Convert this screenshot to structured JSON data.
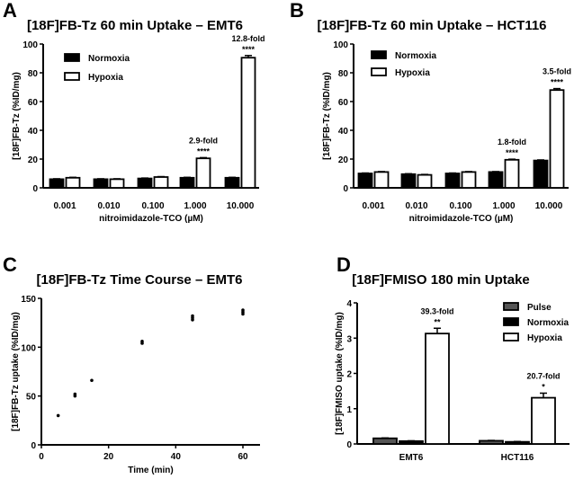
{
  "chart_data": [
    {
      "panel": "A",
      "type": "bar",
      "title": "[18F]FB-Tz 60 min Uptake – EMT6",
      "xlabel": "nitroimidazole-TCO (µM)",
      "ylabel": "[18F]FB-Tz (%ID/mg)",
      "ylim": [
        0,
        100
      ],
      "yticks": [
        0,
        20,
        40,
        60,
        80,
        100
      ],
      "categories": [
        "0.001",
        "0.010",
        "0.100",
        "1.000",
        "10.000"
      ],
      "legend_position": "top-left",
      "series": [
        {
          "name": "Normoxia",
          "color": "#000000",
          "values": [
            6,
            6,
            6.5,
            7,
            7
          ],
          "errors": [
            0.3,
            0.3,
            0.3,
            0.3,
            0.3
          ]
        },
        {
          "name": "Hypoxia",
          "color": "#ffffff",
          "values": [
            7,
            6,
            7.5,
            20.5,
            90.5
          ],
          "errors": [
            0.3,
            0.3,
            0.3,
            0.5,
            1.5
          ]
        }
      ],
      "annotations": [
        {
          "category": "1.000",
          "fold": "2.9-fold",
          "sig": "****"
        },
        {
          "category": "10.000",
          "fold": "12.8-fold",
          "sig": "****"
        }
      ]
    },
    {
      "panel": "B",
      "type": "bar",
      "title": "[18F]FB-Tz 60 min Uptake – HCT116",
      "xlabel": "nitroimidazole-TCO (µM)",
      "ylabel": "[18F]FB-Tz (%ID/mg)",
      "ylim": [
        0,
        100
      ],
      "yticks": [
        0,
        20,
        40,
        60,
        80,
        100
      ],
      "categories": [
        "0.001",
        "0.010",
        "0.100",
        "1.000",
        "10.000"
      ],
      "legend_position": "top-left",
      "series": [
        {
          "name": "Normoxia",
          "color": "#000000",
          "values": [
            10,
            9.5,
            10,
            11,
            19
          ],
          "errors": [
            0.3,
            0.3,
            0.3,
            0.3,
            0.4
          ]
        },
        {
          "name": "Hypoxia",
          "color": "#ffffff",
          "values": [
            11,
            9,
            11,
            19.5,
            68
          ],
          "errors": [
            0.3,
            0.3,
            0.3,
            0.4,
            1
          ]
        }
      ],
      "annotations": [
        {
          "category": "1.000",
          "fold": "1.8-fold",
          "sig": "****"
        },
        {
          "category": "10.000",
          "fold": "3.5-fold",
          "sig": "****"
        }
      ]
    },
    {
      "panel": "C",
      "type": "scatter",
      "title": "[18F]FB-Tz Time Course – EMT6",
      "xlabel": "Time (min)",
      "ylabel": "[18F]FB-Tz uptake (%ID/mg)",
      "xlim": [
        0,
        65
      ],
      "ylim": [
        0,
        150
      ],
      "xticks": [
        0,
        20,
        40,
        60
      ],
      "yticks": [
        0,
        50,
        100,
        150
      ],
      "points": [
        {
          "x": 5,
          "y": 30
        },
        {
          "x": 10,
          "y": 50
        },
        {
          "x": 10,
          "y": 52
        },
        {
          "x": 15,
          "y": 66
        },
        {
          "x": 30,
          "y": 104
        },
        {
          "x": 30,
          "y": 106
        },
        {
          "x": 45,
          "y": 128
        },
        {
          "x": 45,
          "y": 130
        },
        {
          "x": 45,
          "y": 132
        },
        {
          "x": 60,
          "y": 134
        },
        {
          "x": 60,
          "y": 136
        },
        {
          "x": 60,
          "y": 138
        }
      ]
    },
    {
      "panel": "D",
      "type": "bar",
      "title": "[18F]FMISO 180 min Uptake",
      "xlabel": "",
      "ylabel": "[18F]FMISO uptake (%ID/mg)",
      "ylim": [
        0,
        4
      ],
      "yticks": [
        0,
        1,
        2,
        3,
        4
      ],
      "categories": [
        "EMT6",
        "HCT116"
      ],
      "legend_position": "top-right",
      "series": [
        {
          "name": "Pulse",
          "color": "#555555",
          "values": [
            0.16,
            0.09
          ],
          "errors": [
            0.01,
            0.01
          ]
        },
        {
          "name": "Normoxia",
          "color": "#000000",
          "values": [
            0.08,
            0.06
          ],
          "errors": [
            0.01,
            0.01
          ]
        },
        {
          "name": "Hypoxia",
          "color": "#ffffff",
          "values": [
            3.13,
            1.31
          ],
          "errors": [
            0.15,
            0.13
          ]
        }
      ],
      "annotations": [
        {
          "category": "EMT6",
          "fold": "39.3-fold",
          "sig": "**"
        },
        {
          "category": "HCT116",
          "fold": "20.7-fold",
          "sig": "*"
        }
      ]
    }
  ]
}
